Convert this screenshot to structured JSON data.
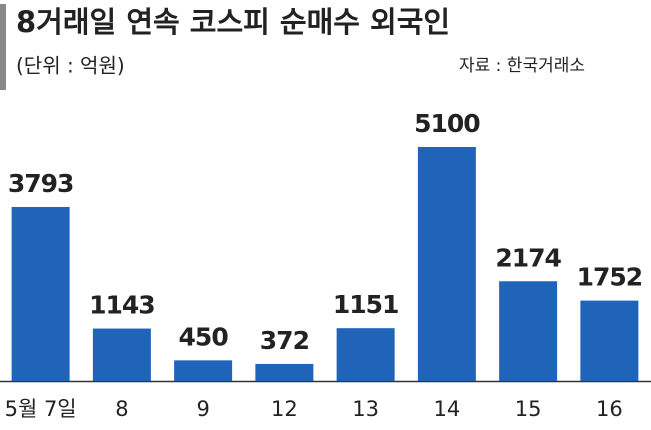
{
  "chart_data": {
    "type": "bar",
    "title": "8거래일 연속 코스피 순매수 외국인",
    "subtitle": "(단위 : 억원)",
    "source": "자료 : 한국거래소",
    "categories": [
      "5월 7일",
      "8",
      "9",
      "12",
      "13",
      "14",
      "15",
      "16"
    ],
    "values": [
      3793,
      1143,
      450,
      372,
      1151,
      5100,
      2174,
      1752
    ],
    "color": "#1f64b8",
    "ylim": [
      0,
      5100
    ]
  }
}
